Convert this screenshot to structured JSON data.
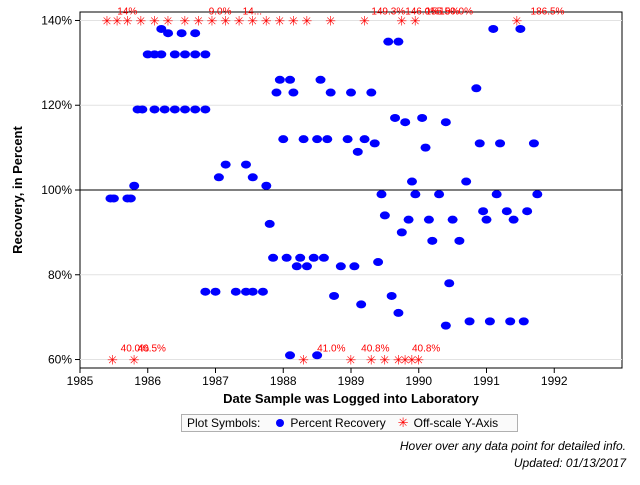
{
  "chart_data": {
    "type": "scatter",
    "xlabel": "Date Sample was Logged into Laboratory",
    "ylabel": "Recovery, in Percent",
    "xlim": [
      1985.0,
      1993.0
    ],
    "ylim": [
      58,
      142
    ],
    "x_ticks": [
      "1985",
      "1986",
      "1987",
      "1988",
      "1989",
      "1990",
      "1991",
      "1992"
    ],
    "y_ticks": [
      "60%",
      "80%",
      "100%",
      "120%",
      "140%"
    ],
    "y_tick_values": [
      60,
      80,
      100,
      120,
      140
    ],
    "reference_line": 100,
    "grid": "horizontal",
    "series": [
      {
        "name": "Percent Recovery",
        "color": "#0000ff",
        "marker": "circle",
        "points": [
          [
            1985.45,
            98
          ],
          [
            1985.5,
            98
          ],
          [
            1985.7,
            98
          ],
          [
            1985.75,
            98
          ],
          [
            1985.8,
            101
          ],
          [
            1985.85,
            119
          ],
          [
            1985.92,
            119
          ],
          [
            1986.0,
            132
          ],
          [
            1986.1,
            132
          ],
          [
            1986.2,
            132
          ],
          [
            1986.3,
            137
          ],
          [
            1986.1,
            119
          ],
          [
            1986.25,
            119
          ],
          [
            1986.4,
            119
          ],
          [
            1986.55,
            119
          ],
          [
            1986.7,
            119
          ],
          [
            1986.85,
            119
          ],
          [
            1986.4,
            132
          ],
          [
            1986.55,
            132
          ],
          [
            1986.7,
            132
          ],
          [
            1986.85,
            132
          ],
          [
            1986.5,
            137
          ],
          [
            1986.7,
            137
          ],
          [
            1986.2,
            138
          ],
          [
            1986.85,
            76
          ],
          [
            1987.0,
            76
          ],
          [
            1987.05,
            103
          ],
          [
            1987.15,
            106
          ],
          [
            1987.3,
            76
          ],
          [
            1987.45,
            76
          ],
          [
            1987.45,
            106
          ],
          [
            1987.55,
            103
          ],
          [
            1987.55,
            76
          ],
          [
            1987.7,
            76
          ],
          [
            1987.75,
            101
          ],
          [
            1987.8,
            92
          ],
          [
            1987.85,
            84
          ],
          [
            1987.9,
            123
          ],
          [
            1987.95,
            126
          ],
          [
            1988.0,
            112
          ],
          [
            1988.05,
            84
          ],
          [
            1988.1,
            126
          ],
          [
            1988.15,
            123
          ],
          [
            1988.2,
            82
          ],
          [
            1988.25,
            84
          ],
          [
            1988.3,
            112
          ],
          [
            1988.35,
            82
          ],
          [
            1988.45,
            84
          ],
          [
            1988.5,
            112
          ],
          [
            1988.55,
            126
          ],
          [
            1988.6,
            84
          ],
          [
            1988.65,
            112
          ],
          [
            1988.7,
            123
          ],
          [
            1988.75,
            75
          ],
          [
            1988.85,
            82
          ],
          [
            1988.95,
            112
          ],
          [
            1989.0,
            123
          ],
          [
            1989.05,
            82
          ],
          [
            1989.1,
            109
          ],
          [
            1989.15,
            73
          ],
          [
            1989.2,
            112
          ],
          [
            1989.3,
            123
          ],
          [
            1989.35,
            111
          ],
          [
            1989.4,
            83
          ],
          [
            1989.45,
            99
          ],
          [
            1989.5,
            94
          ],
          [
            1989.55,
            135
          ],
          [
            1989.6,
            75
          ],
          [
            1989.65,
            117
          ],
          [
            1989.7,
            71
          ],
          [
            1989.75,
            90
          ],
          [
            1989.7,
            135
          ],
          [
            1989.8,
            116
          ],
          [
            1989.85,
            93
          ],
          [
            1989.9,
            102
          ],
          [
            1989.95,
            99
          ],
          [
            1990.05,
            117
          ],
          [
            1990.1,
            110
          ],
          [
            1990.15,
            93
          ],
          [
            1990.2,
            88
          ],
          [
            1990.3,
            99
          ],
          [
            1990.4,
            116
          ],
          [
            1990.45,
            78
          ],
          [
            1990.5,
            93
          ],
          [
            1990.6,
            88
          ],
          [
            1990.7,
            102
          ],
          [
            1990.75,
            69
          ],
          [
            1990.85,
            124
          ],
          [
            1990.9,
            111
          ],
          [
            1990.95,
            95
          ],
          [
            1991.0,
            93
          ],
          [
            1991.05,
            69
          ],
          [
            1991.1,
            138
          ],
          [
            1991.15,
            99
          ],
          [
            1991.2,
            111
          ],
          [
            1991.3,
            95
          ],
          [
            1991.35,
            69
          ],
          [
            1991.4,
            93
          ],
          [
            1991.5,
            138
          ],
          [
            1991.55,
            69
          ],
          [
            1991.6,
            95
          ],
          [
            1991.7,
            111
          ],
          [
            1991.75,
            99
          ],
          [
            1988.1,
            61
          ],
          [
            1988.5,
            61
          ],
          [
            1990.4,
            68
          ]
        ]
      },
      {
        "name": "Off-scale Y-Axis",
        "color": "#ff0000",
        "marker": "asterisk",
        "points_high": [
          1985.4,
          1985.55,
          1985.7,
          1985.9,
          1986.1,
          1986.3,
          1986.55,
          1986.75,
          1986.95,
          1987.15,
          1987.35,
          1987.55,
          1987.75,
          1987.95,
          1988.15,
          1988.35,
          1988.7,
          1989.2,
          1989.75,
          1989.95,
          1991.45
        ],
        "points_low": [
          1985.48,
          1985.8,
          1988.3,
          1989.0,
          1989.3,
          1989.5,
          1989.7,
          1989.8,
          1989.9,
          1990.0
        ],
        "labels_high": [
          "14%",
          "9.0%",
          "14...",
          "149.3%",
          "146.0%",
          "155.9%",
          "150.0%",
          "186.5%"
        ],
        "labels_low": [
          "40.0%",
          "40.5%",
          "41.0%",
          "40.8%",
          "40.8%"
        ]
      }
    ]
  },
  "legend": {
    "title": "Plot Symbols:",
    "item1": "Percent Recovery",
    "item2": "Off-scale Y-Axis"
  },
  "footnotes": {
    "hover": "Hover over any data point for detailed info.",
    "updated": "Updated: 01/13/2017"
  },
  "colors": {
    "points": "#0000ff",
    "offscale": "#ff0000",
    "grid": "#e2e2e2"
  }
}
